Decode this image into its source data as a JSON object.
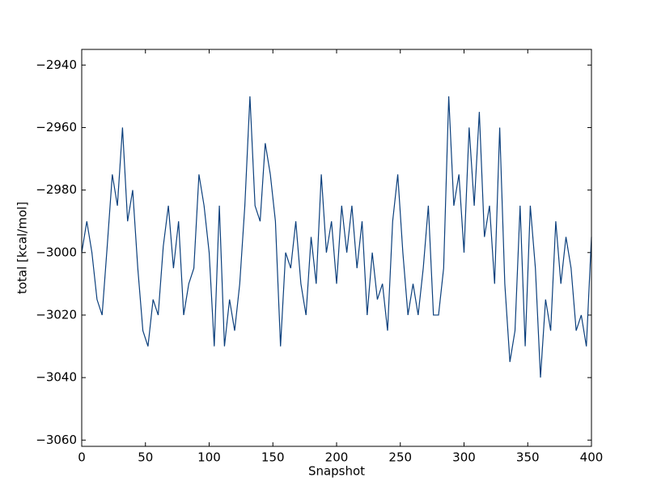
{
  "chart_data": {
    "type": "line",
    "xlabel": "Snapshot",
    "ylabel": "total [kcal/mol]",
    "x": [
      0,
      4,
      8,
      12,
      16,
      20,
      24,
      28,
      32,
      36,
      40,
      44,
      48,
      52,
      56,
      60,
      64,
      68,
      72,
      76,
      80,
      84,
      88,
      92,
      96,
      100,
      104,
      108,
      112,
      116,
      120,
      124,
      128,
      132,
      136,
      140,
      144,
      148,
      152,
      156,
      160,
      164,
      168,
      172,
      176,
      180,
      184,
      188,
      192,
      196,
      200,
      204,
      208,
      212,
      216,
      220,
      224,
      228,
      232,
      236,
      240,
      244,
      248,
      252,
      256,
      260,
      264,
      268,
      272,
      276,
      280,
      284,
      288,
      292,
      296,
      300,
      304,
      308,
      312,
      316,
      320,
      324,
      328,
      332,
      336,
      340,
      344,
      348,
      352,
      356,
      360,
      364,
      368,
      372,
      376,
      380,
      384,
      388,
      392,
      396,
      400
    ],
    "series": [
      {
        "name": "total",
        "color": "#0b3f7c",
        "values": [
          -3000,
          -2990,
          -3000,
          -3015,
          -3020,
          -2998,
          -2975,
          -2985,
          -2960,
          -2990,
          -2980,
          -3005,
          -3025,
          -3030,
          -3015,
          -3020,
          -2998,
          -2985,
          -3005,
          -2990,
          -3020,
          -3010,
          -3005,
          -2975,
          -2985,
          -3000,
          -3030,
          -2985,
          -3030,
          -3015,
          -3025,
          -3010,
          -2985,
          -2950,
          -2985,
          -2990,
          -2965,
          -2975,
          -2990,
          -3030,
          -3000,
          -3005,
          -2990,
          -3010,
          -3020,
          -2995,
          -3010,
          -2975,
          -3000,
          -2990,
          -3010,
          -2985,
          -3000,
          -2985,
          -3005,
          -2990,
          -3020,
          -3000,
          -3015,
          -3010,
          -3025,
          -2990,
          -2975,
          -3000,
          -3020,
          -3010,
          -3020,
          -3005,
          -2985,
          -3020,
          -3020,
          -3005,
          -2950,
          -2985,
          -2975,
          -3000,
          -2960,
          -2985,
          -2955,
          -2995,
          -2985,
          -3010,
          -2960,
          -3010,
          -3035,
          -3025,
          -2985,
          -3030,
          -2985,
          -3005,
          -3040,
          -3015,
          -3025,
          -2990,
          -3010,
          -2995,
          -3005,
          -3025,
          -3020,
          -3030,
          -2995
        ]
      }
    ],
    "xlim": [
      0,
      400
    ],
    "xticks": [
      0,
      50,
      100,
      150,
      200,
      250,
      300,
      350,
      400
    ],
    "ylim": [
      -3062,
      -2935
    ],
    "yticks": [
      {
        "value": -3060,
        "label": "−3060"
      },
      {
        "value": -3040,
        "label": "−3040"
      },
      {
        "value": -3020,
        "label": "−3020"
      },
      {
        "value": -3000,
        "label": "−3000"
      },
      {
        "value": -2980,
        "label": "−2980"
      },
      {
        "value": -2960,
        "label": "−2960"
      },
      {
        "value": -2940,
        "label": "−2940"
      }
    ],
    "grid": false
  }
}
